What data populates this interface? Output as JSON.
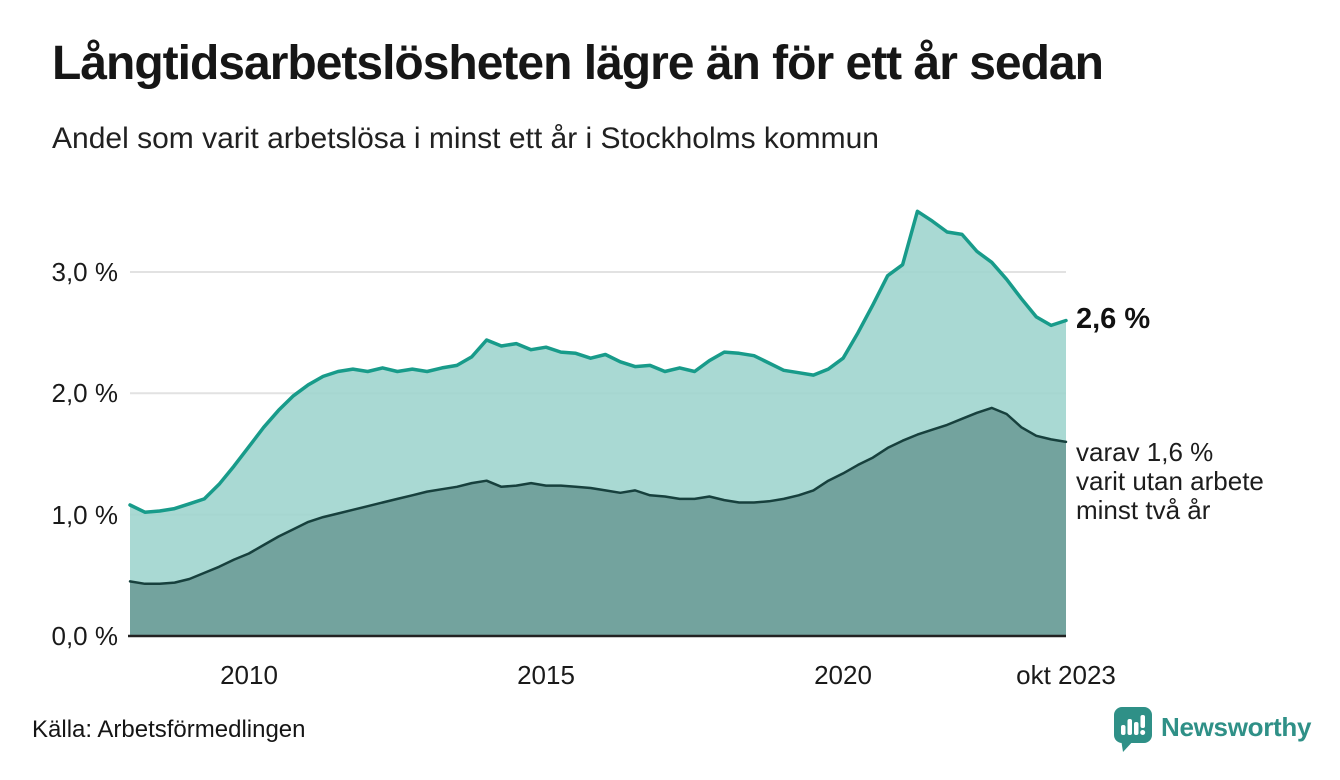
{
  "header": {
    "title": "Långtidsarbetslösheten lägre än för ett år sedan",
    "subtitle": "Andel som varit arbetslösa i minst ett år i Stockholms kommun"
  },
  "chart_data": {
    "type": "area",
    "title": "Långtidsarbetslösheten lägre än för ett år sedan",
    "subtitle": "Andel som varit arbetslösa i minst ett år i Stockholms kommun",
    "unit": "%",
    "xlim": [
      2008,
      2023.75
    ],
    "ylim": [
      0,
      3.7
    ],
    "grid": "horizontal",
    "legend_position": "direct-end-labels",
    "x": [
      2008,
      2008.25,
      2008.5,
      2008.75,
      2009,
      2009.25,
      2009.5,
      2009.75,
      2010,
      2010.25,
      2010.5,
      2010.75,
      2011,
      2011.25,
      2011.5,
      2011.75,
      2012,
      2012.25,
      2012.5,
      2012.75,
      2013,
      2013.25,
      2013.5,
      2013.75,
      2014,
      2014.25,
      2014.5,
      2014.75,
      2015,
      2015.25,
      2015.5,
      2015.75,
      2016,
      2016.25,
      2016.5,
      2016.75,
      2017,
      2017.25,
      2017.5,
      2017.75,
      2018,
      2018.25,
      2018.5,
      2018.75,
      2019,
      2019.25,
      2019.5,
      2019.75,
      2020,
      2020.25,
      2020.5,
      2020.75,
      2021,
      2021.25,
      2021.5,
      2021.75,
      2022,
      2022.25,
      2022.5,
      2022.75,
      2023,
      2023.25,
      2023.5,
      2023.75
    ],
    "series": [
      {
        "name": "Arbetslösa minst ett år",
        "end_label": "2,6 %",
        "end_value": 2.6,
        "line_color": "#189b8a",
        "fill_color": "#a0d5ce",
        "values": [
          1.08,
          1.02,
          1.03,
          1.05,
          1.09,
          1.13,
          1.25,
          1.4,
          1.56,
          1.72,
          1.86,
          1.98,
          2.07,
          2.14,
          2.18,
          2.2,
          2.18,
          2.21,
          2.18,
          2.2,
          2.18,
          2.21,
          2.23,
          2.3,
          2.44,
          2.39,
          2.41,
          2.36,
          2.38,
          2.34,
          2.33,
          2.29,
          2.32,
          2.26,
          2.22,
          2.23,
          2.18,
          2.21,
          2.18,
          2.27,
          2.34,
          2.33,
          2.31,
          2.25,
          2.19,
          2.17,
          2.15,
          2.2,
          2.29,
          2.5,
          2.73,
          2.97,
          3.06,
          3.5,
          3.42,
          3.33,
          3.31,
          3.17,
          3.08,
          2.94,
          2.78,
          2.63,
          2.56,
          2.6
        ]
      },
      {
        "name": "Varav utan arbete minst två år",
        "end_label": "varav 1,6 %\nvarit utan arbete\nminst två år",
        "end_value": 1.6,
        "line_color": "#17403d",
        "fill_color": "#70a09b",
        "values": [
          0.45,
          0.43,
          0.43,
          0.44,
          0.47,
          0.52,
          0.57,
          0.63,
          0.68,
          0.75,
          0.82,
          0.88,
          0.94,
          0.98,
          1.01,
          1.04,
          1.07,
          1.1,
          1.13,
          1.16,
          1.19,
          1.21,
          1.23,
          1.26,
          1.28,
          1.23,
          1.24,
          1.26,
          1.24,
          1.24,
          1.23,
          1.22,
          1.2,
          1.18,
          1.2,
          1.16,
          1.15,
          1.13,
          1.13,
          1.15,
          1.12,
          1.1,
          1.1,
          1.11,
          1.13,
          1.16,
          1.2,
          1.28,
          1.34,
          1.41,
          1.47,
          1.55,
          1.61,
          1.66,
          1.7,
          1.74,
          1.79,
          1.84,
          1.88,
          1.83,
          1.72,
          1.65,
          1.62,
          1.6
        ]
      }
    ],
    "y_ticks": [
      {
        "value": 3,
        "label": "3,0 %"
      },
      {
        "value": 2,
        "label": "2,0 %"
      },
      {
        "value": 1,
        "label": "1,0 %"
      },
      {
        "value": 0,
        "label": "0,0 %"
      }
    ],
    "x_ticks": [
      {
        "value": 2010,
        "label": "2010"
      },
      {
        "value": 2015,
        "label": "2015"
      },
      {
        "value": 2020,
        "label": "2020"
      },
      {
        "value": 2023.75,
        "label": "okt 2023"
      }
    ],
    "gridline_color": "#e2e2e2",
    "axis_color": "#222222"
  },
  "footer": {
    "source": "Källa: Arbetsförmedlingen",
    "logo_text": "Newsworthy",
    "logo_color": "#2f9087"
  }
}
